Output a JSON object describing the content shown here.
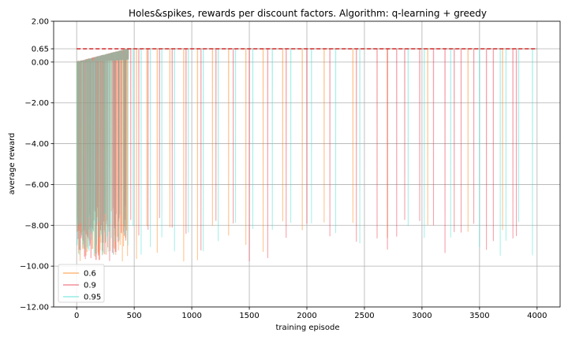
{
  "chart_data": {
    "type": "line",
    "title": "Holes&spikes, rewards per discount factors. Algorithm: q-learning + greedy",
    "xlabel": "training episode",
    "ylabel": "average reward",
    "xlim": [
      -200,
      4200
    ],
    "ylim": [
      -12.0,
      2.0
    ],
    "x_ticks": [
      0,
      500,
      1000,
      1500,
      2000,
      2500,
      3000,
      3500,
      4000
    ],
    "x_tick_labels": [
      "0",
      "500",
      "1000",
      "1500",
      "2000",
      "2500",
      "3000",
      "3500",
      "4000"
    ],
    "y_ticks": [
      -12.0,
      -10.0,
      -8.0,
      -6.0,
      -4.0,
      -2.0,
      0.0,
      0.65,
      2.0
    ],
    "y_tick_labels": [
      "−12.00",
      "−10.00",
      "−8.00",
      "−6.00",
      "−4.00",
      "−2.00",
      "0.00",
      "0.65",
      "2.00"
    ],
    "grid": true,
    "legend_position": "lower-left",
    "reference_line": {
      "y": 0.65,
      "color": "#d62728",
      "style": "dashed"
    },
    "series": [
      {
        "name": "0.6",
        "color": "#ff7f0e",
        "x_range": [
          0,
          4000
        ],
        "converged_value": 0.65,
        "early_value": 0.0,
        "dip_min": -9.8,
        "dip_max": -7.8,
        "dip_episodes": [
          5,
          30,
          60,
          90,
          130,
          170,
          210,
          250,
          290,
          330,
          380,
          440,
          520,
          610,
          700,
          810,
          930,
          1050,
          1180,
          1320,
          1470,
          1620,
          1790,
          1960,
          2150,
          2400,
          2700,
          3050,
          3400,
          3700
        ]
      },
      {
        "name": "0.9",
        "color": "#e8334a",
        "x_range": [
          0,
          4000
        ],
        "converged_value": 0.65,
        "early_value": 0.0,
        "dip_min": -9.8,
        "dip_max": -7.6,
        "dip_episodes": [
          10,
          40,
          75,
          110,
          150,
          190,
          230,
          270,
          310,
          360,
          410,
          470,
          540,
          620,
          720,
          830,
          950,
          1080,
          1210,
          1360,
          1500,
          1660,
          1820,
          2000,
          2200,
          2430,
          2610,
          2700,
          2780,
          2850,
          2980,
          3100,
          3200,
          3280,
          3340,
          3450,
          3560,
          3620,
          3790,
          3820
        ]
      },
      {
        "name": "0.95",
        "color": "#40e0d0",
        "x_range": [
          0,
          4000
        ],
        "converged_value": 0.65,
        "early_value": 0.0,
        "dip_min": -9.5,
        "dip_max": -7.8,
        "dip_episodes": [
          15,
          50,
          85,
          120,
          160,
          200,
          240,
          280,
          320,
          370,
          425,
          490,
          560,
          640,
          740,
          850,
          970,
          1100,
          1230,
          1380,
          1530,
          1700,
          1860,
          2040,
          2250,
          2460,
          2880,
          3020,
          3250,
          3500,
          3680,
          3730,
          3840,
          3960
        ]
      }
    ]
  }
}
